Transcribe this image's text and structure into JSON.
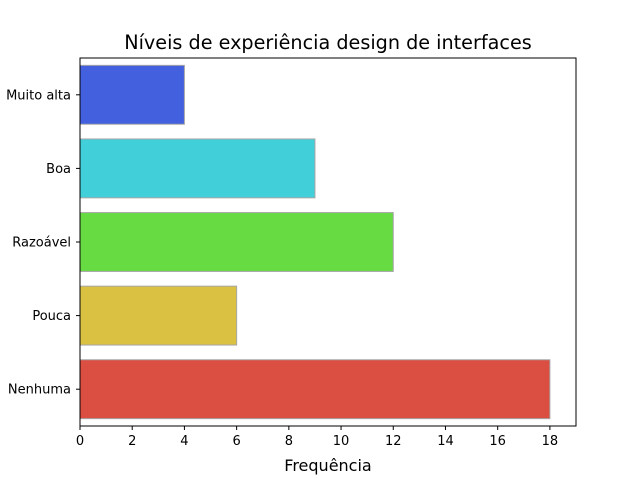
{
  "chart_data": {
    "type": "bar",
    "orientation": "horizontal",
    "title": "Níveis de experiência design de interfaces",
    "xlabel": "Frequência",
    "ylabel": "",
    "categories": [
      "Muito alta",
      "Boa",
      "Razoável",
      "Pouca",
      "Nenhuma"
    ],
    "values": [
      4,
      9,
      12,
      6,
      18
    ],
    "colors": [
      "#4361de",
      "#41cfda",
      "#66db42",
      "#dbc142",
      "#db4e42"
    ],
    "xlim": [
      0,
      19
    ],
    "xticks": [
      0,
      2,
      4,
      6,
      8,
      10,
      12,
      14,
      16,
      18
    ],
    "grid": false,
    "legend": "none"
  }
}
